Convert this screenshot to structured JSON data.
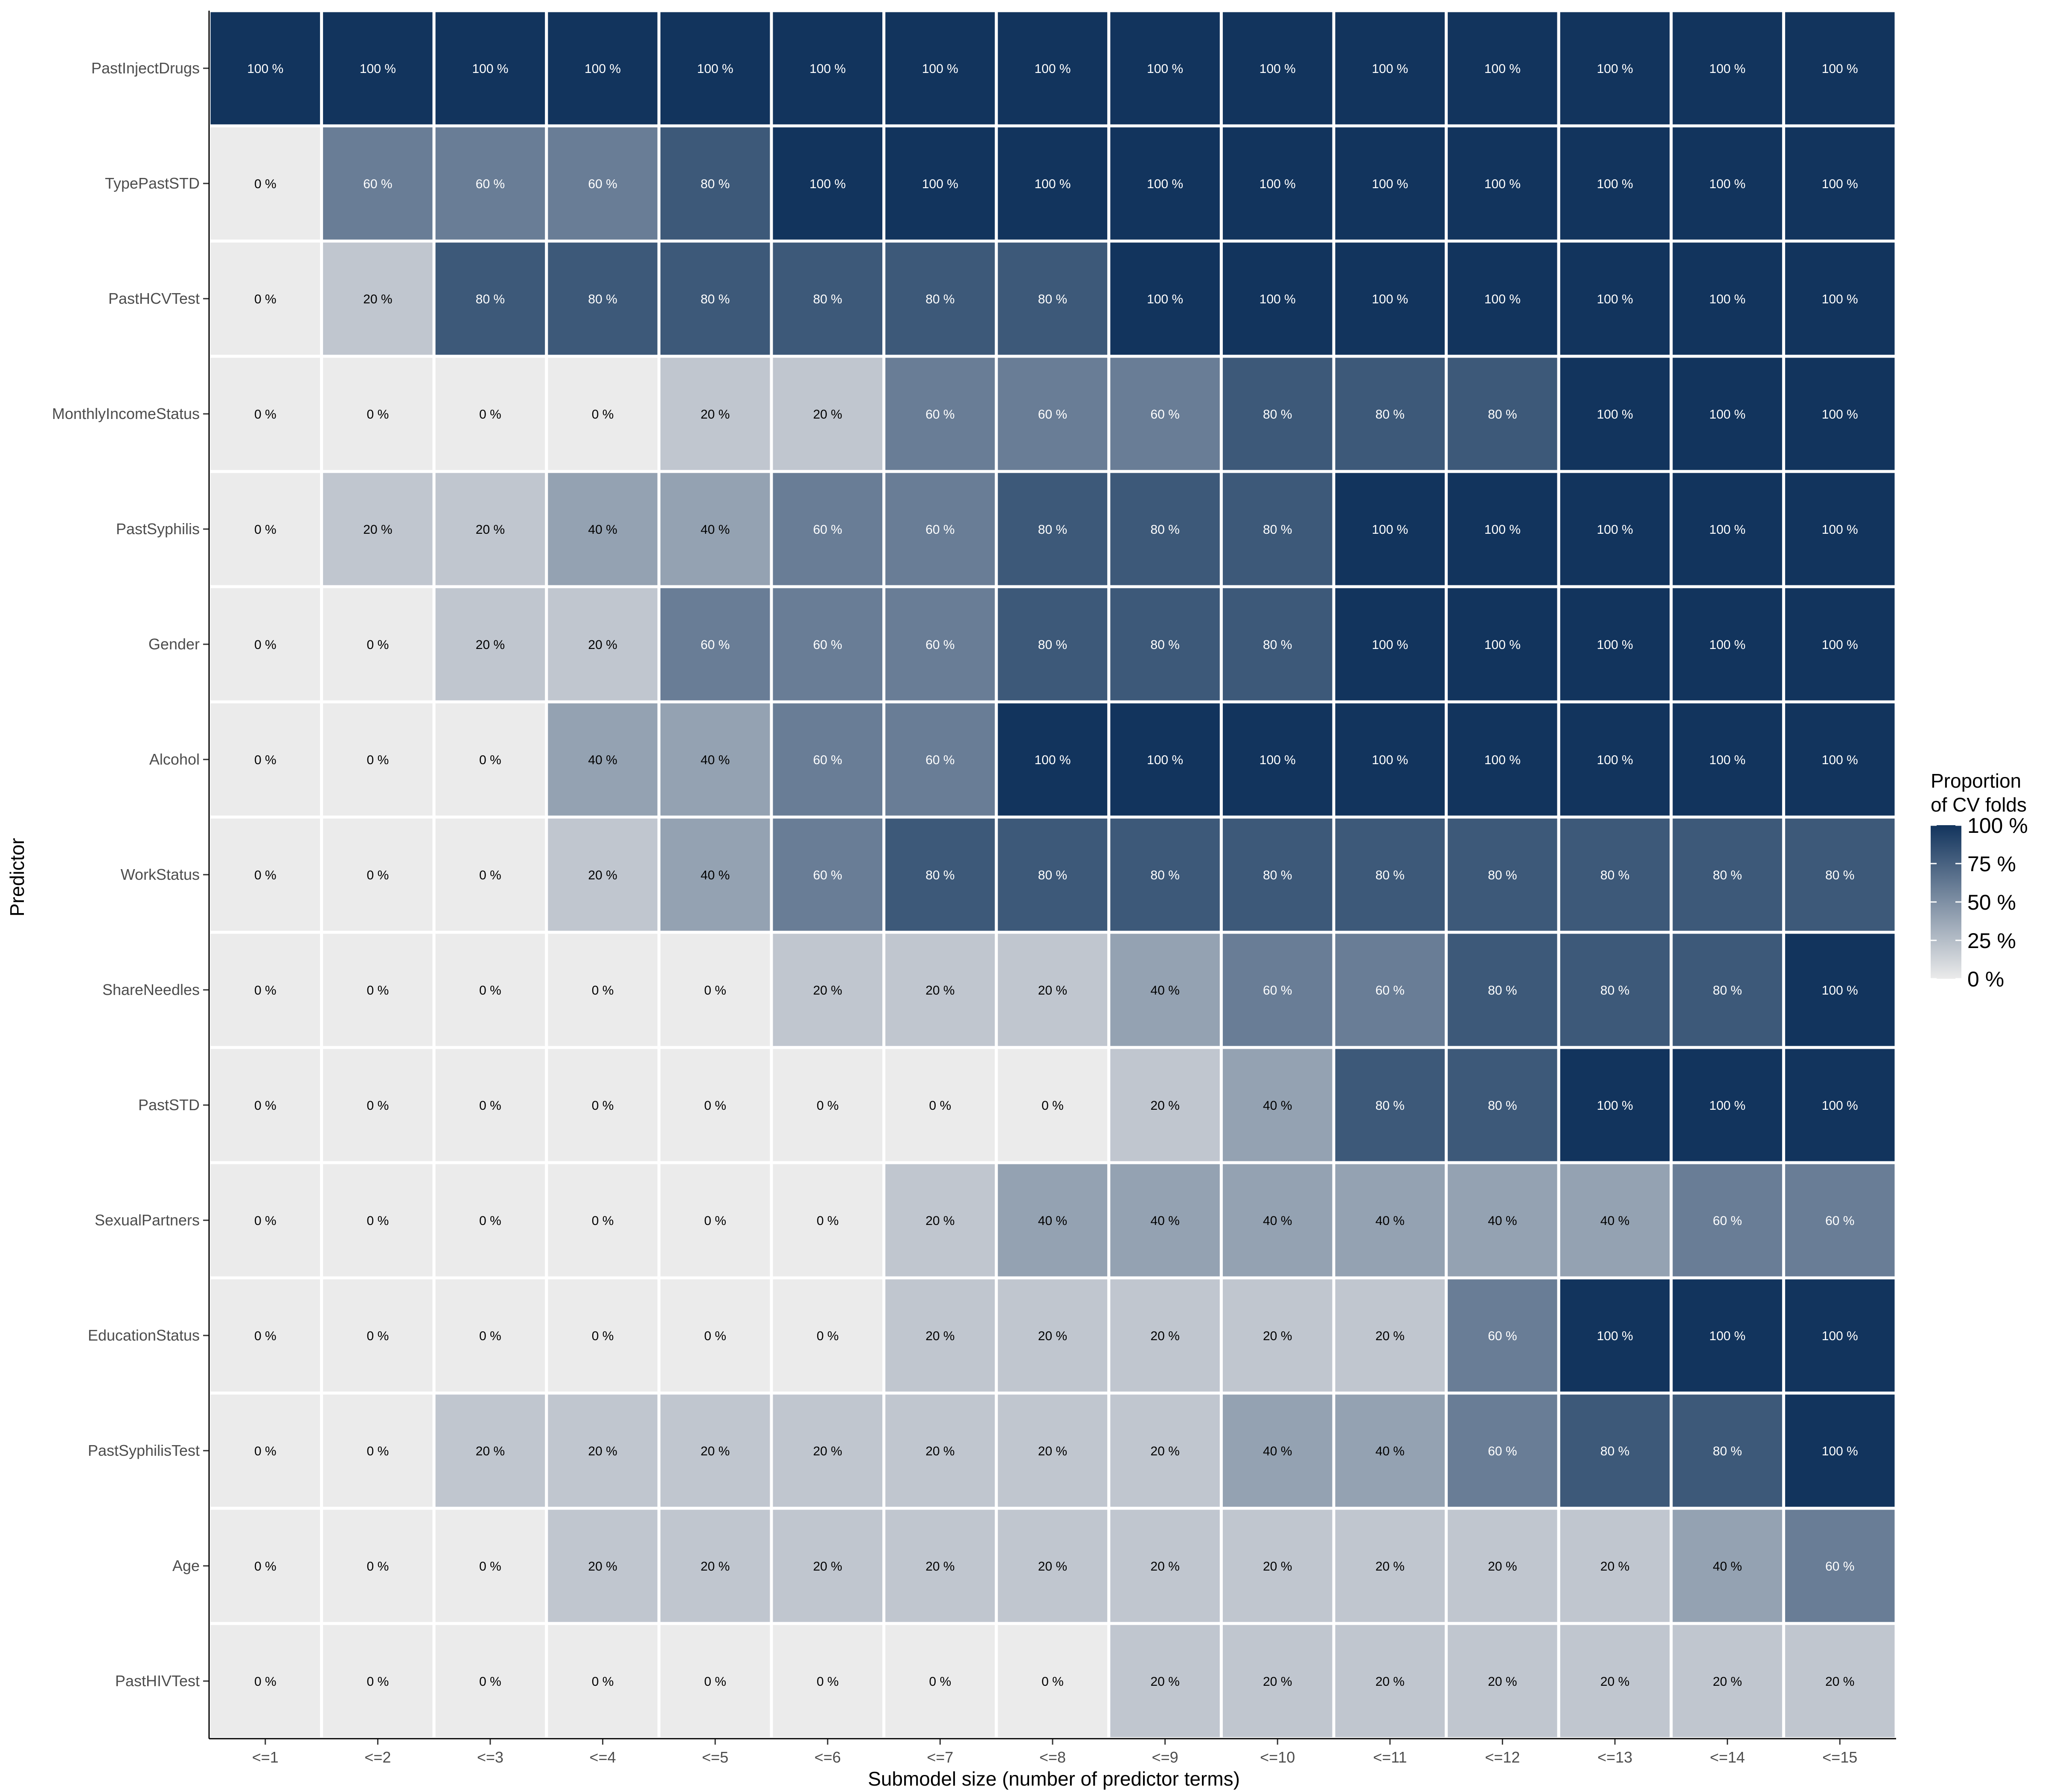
{
  "chart_data": {
    "type": "heatmap",
    "title": "",
    "xlabel": "Submodel size (number of predictor terms)",
    "ylabel": "Predictor",
    "x_categories": [
      "<=1",
      "<=2",
      "<=3",
      "<=4",
      "<=5",
      "<=6",
      "<=7",
      "<=8",
      "<=9",
      "<=10",
      "<=11",
      "<=12",
      "<=13",
      "<=14",
      "<=15"
    ],
    "y_categories": [
      "PastInjectDrugs",
      "TypePastSTD",
      "PastHCVTest",
      "MonthlyIncomeStatus",
      "PastSyphilis",
      "Gender",
      "Alcohol",
      "WorkStatus",
      "ShareNeedles",
      "PastSTD",
      "SexualPartners",
      "EducationStatus",
      "PastSyphilisTest",
      "Age",
      "PastHIVTest"
    ],
    "values": [
      [
        100,
        100,
        100,
        100,
        100,
        100,
        100,
        100,
        100,
        100,
        100,
        100,
        100,
        100,
        100
      ],
      [
        0,
        60,
        60,
        60,
        80,
        100,
        100,
        100,
        100,
        100,
        100,
        100,
        100,
        100,
        100
      ],
      [
        0,
        20,
        80,
        80,
        80,
        80,
        80,
        80,
        100,
        100,
        100,
        100,
        100,
        100,
        100
      ],
      [
        0,
        0,
        0,
        0,
        20,
        20,
        60,
        60,
        60,
        80,
        80,
        80,
        100,
        100,
        100
      ],
      [
        0,
        20,
        20,
        40,
        40,
        60,
        60,
        80,
        80,
        80,
        100,
        100,
        100,
        100,
        100
      ],
      [
        0,
        0,
        20,
        20,
        60,
        60,
        60,
        80,
        80,
        80,
        100,
        100,
        100,
        100,
        100
      ],
      [
        0,
        0,
        0,
        40,
        40,
        60,
        60,
        100,
        100,
        100,
        100,
        100,
        100,
        100,
        100
      ],
      [
        0,
        0,
        0,
        20,
        40,
        60,
        80,
        80,
        80,
        80,
        80,
        80,
        80,
        80,
        80
      ],
      [
        0,
        0,
        0,
        0,
        0,
        20,
        20,
        20,
        40,
        60,
        60,
        80,
        80,
        80,
        100
      ],
      [
        0,
        0,
        0,
        0,
        0,
        0,
        0,
        0,
        20,
        40,
        80,
        80,
        100,
        100,
        100
      ],
      [
        0,
        0,
        0,
        0,
        0,
        0,
        20,
        40,
        40,
        40,
        40,
        40,
        40,
        60,
        60
      ],
      [
        0,
        0,
        0,
        0,
        0,
        0,
        20,
        20,
        20,
        20,
        20,
        60,
        100,
        100,
        100
      ],
      [
        0,
        0,
        20,
        20,
        20,
        20,
        20,
        20,
        20,
        40,
        40,
        60,
        80,
        80,
        100
      ],
      [
        0,
        0,
        0,
        20,
        20,
        20,
        20,
        20,
        20,
        20,
        20,
        20,
        20,
        40,
        60
      ],
      [
        0,
        0,
        0,
        0,
        0,
        0,
        0,
        0,
        20,
        20,
        20,
        20,
        20,
        20,
        20
      ]
    ],
    "value_suffix": " %",
    "value_range": [
      0,
      100
    ],
    "color_scale": {
      "low": "#ebebeb",
      "high": "#12345d"
    },
    "legend": {
      "title_line1": "Proportion",
      "title_line2": "of CV folds",
      "ticks": [
        "100 %",
        "75 %",
        "50 %",
        "25 %",
        "0 %"
      ],
      "tick_values": [
        100,
        75,
        50,
        25,
        0
      ],
      "position": "right"
    },
    "grid": false
  }
}
